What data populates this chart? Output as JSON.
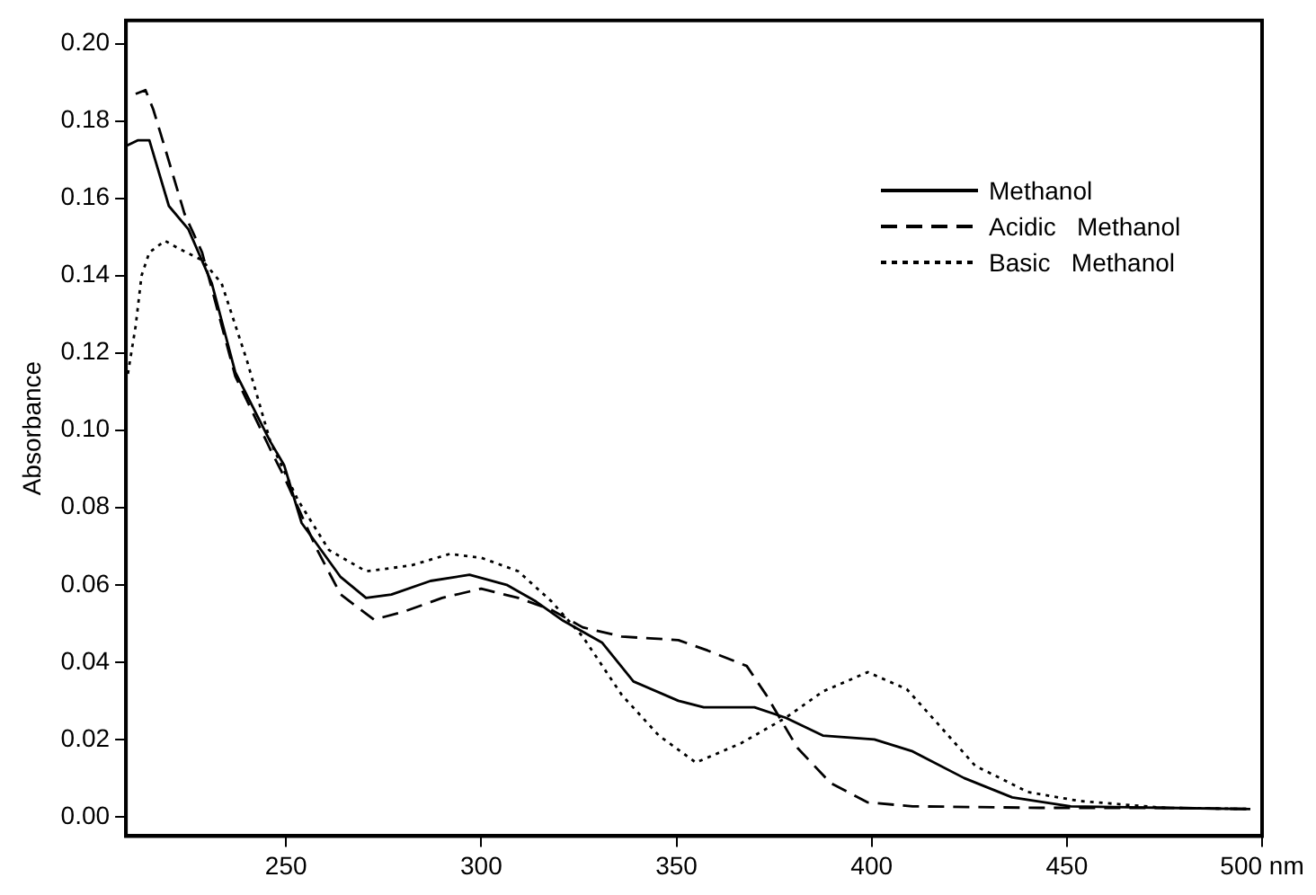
{
  "chart_data": {
    "type": "line",
    "ylabel": "Absorbance",
    "xlim": [
      209,
      500
    ],
    "ylim": [
      -0.005,
      0.206
    ],
    "xticks": [
      250,
      300,
      350,
      400,
      450,
      {
        "value": 500,
        "label": "500 nm"
      }
    ],
    "yticks": [
      {
        "value": 0,
        "label": "0.00"
      },
      {
        "value": 0.02,
        "label": "0.02"
      },
      {
        "value": 0.04,
        "label": "0.04"
      },
      {
        "value": 0.06,
        "label": "0.06"
      },
      {
        "value": 0.08,
        "label": "0.08"
      },
      {
        "value": 0.1,
        "label": "0.10"
      },
      {
        "value": 0.12,
        "label": "0.12"
      },
      {
        "value": 0.14,
        "label": "0.14"
      },
      {
        "value": 0.16,
        "label": "0.16"
      },
      {
        "value": 0.18,
        "label": "0.18"
      },
      {
        "value": 0.2,
        "label": "0.20"
      }
    ],
    "grid": false,
    "legend": "top right",
    "marker": "none",
    "series": [
      {
        "name": "Methanol",
        "color": "#000000",
        "line_style": "solid",
        "x": [
          209,
          212,
          215,
          220,
          225,
          231,
          237,
          246,
          249.5,
          254,
          264,
          270.5,
          277,
          287,
          297,
          306.5,
          314,
          321,
          331,
          339,
          350.5,
          357,
          370,
          378,
          387.5,
          400.7,
          410.5,
          423.7,
          436,
          451,
          475,
          497
        ],
        "values": [
          0.1735,
          0.175,
          0.175,
          0.158,
          0.152,
          0.138,
          0.115,
          0.097,
          0.091,
          0.076,
          0.062,
          0.0566,
          0.0575,
          0.061,
          0.0626,
          0.06,
          0.0557,
          0.0507,
          0.045,
          0.035,
          0.03,
          0.0283,
          0.0283,
          0.0256,
          0.021,
          0.02,
          0.0169,
          0.01,
          0.005,
          0.0027,
          0.0023,
          0.002
        ]
      },
      {
        "name": "Acidic   Methanol",
        "color": "#000000",
        "line_style": "dashed",
        "x": [
          211.5,
          214,
          216,
          219,
          224,
          228.5,
          237,
          246,
          249.5,
          258,
          264,
          272.5,
          280,
          290,
          300,
          309.5,
          318,
          326,
          336,
          350.5,
          358,
          368,
          373,
          381,
          389.5,
          399,
          410.5,
          443,
          474.5,
          497
        ],
        "values": [
          0.187,
          0.188,
          0.183,
          0.173,
          0.156,
          0.146,
          0.114,
          0.095,
          0.088,
          0.069,
          0.0575,
          0.051,
          0.053,
          0.0566,
          0.059,
          0.0566,
          0.0535,
          0.049,
          0.0466,
          0.0457,
          0.043,
          0.039,
          0.0315,
          0.0178,
          0.0087,
          0.0037,
          0.0027,
          0.0023,
          0.0023,
          0.002
        ]
      },
      {
        "name": "Basic   Methanol",
        "color": "#000000",
        "line_style": "dotted",
        "x": [
          209.5,
          211.5,
          213,
          215,
          219,
          222.5,
          228.5,
          233.5,
          240,
          246,
          253,
          261,
          270.5,
          282,
          292,
          300,
          309.5,
          318,
          326,
          336,
          345.5,
          355,
          366.5,
          378,
          387.5,
          399,
          409,
          417,
          426.5,
          440,
          453,
          475,
          497
        ],
        "values": [
          0.1146,
          0.127,
          0.14,
          0.146,
          0.149,
          0.147,
          0.144,
          0.138,
          0.118,
          0.097,
          0.082,
          0.069,
          0.0635,
          0.065,
          0.068,
          0.067,
          0.0635,
          0.0557,
          0.0466,
          0.0315,
          0.021,
          0.014,
          0.019,
          0.0256,
          0.0324,
          0.0374,
          0.033,
          0.024,
          0.0132,
          0.0064,
          0.0041,
          0.0023,
          0.002
        ]
      }
    ]
  }
}
